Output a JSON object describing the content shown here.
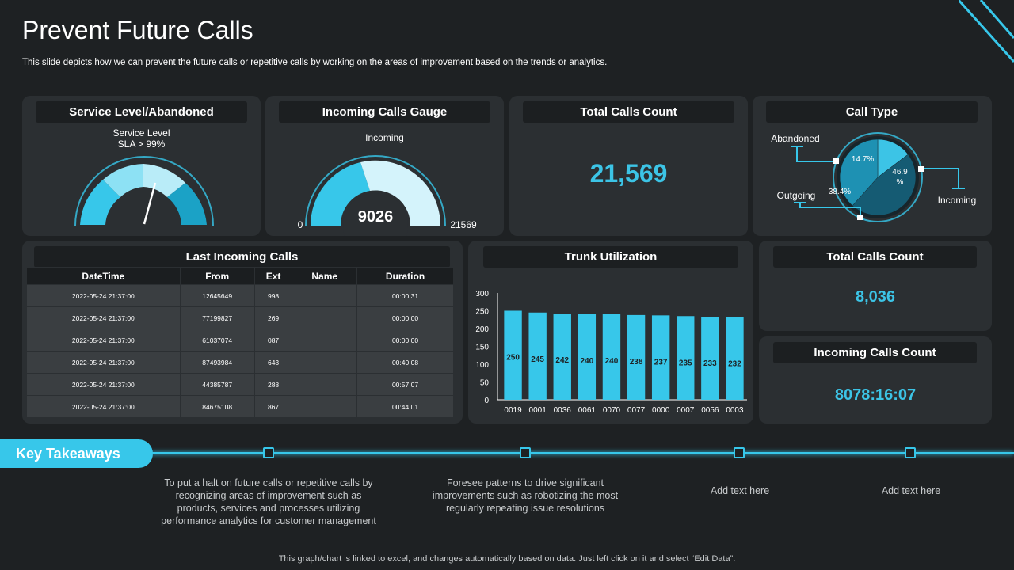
{
  "slide": {
    "title": "Prevent Future Calls",
    "subtitle": "This slide depicts how we can prevent the future calls or repetitive calls by working on the areas of improvement based on the trends or analytics."
  },
  "service_level": {
    "header": "Service Level/Abandoned",
    "label_line1": "Service Level",
    "label_line2": "SLA > 99%"
  },
  "gauge": {
    "header": "Incoming Calls Gauge",
    "label": "Incoming",
    "value": "9026",
    "min": "0",
    "max": "21569"
  },
  "total_calls_1": {
    "header": "Total Calls Count",
    "value": "21,569"
  },
  "call_type": {
    "header": "Call Type",
    "abandoned_label": "Abandoned",
    "outgoing_label": "Outgoing",
    "incoming_label": "Incoming",
    "abandoned_pct": "14.7%",
    "outgoing_pct": "38.4%",
    "incoming_pct_line1": "46.9",
    "incoming_pct_line2": "%"
  },
  "last_calls": {
    "header": "Last Incoming Calls",
    "columns": [
      "DateTime",
      "From",
      "Ext",
      "Name",
      "Duration"
    ],
    "rows": [
      [
        "2022-05-24 21:37:00",
        "12645649",
        "998",
        "",
        "00:00:31"
      ],
      [
        "2022-05-24 21:37:00",
        "77199827",
        "269",
        "",
        "00:00:00"
      ],
      [
        "2022-05-24 21:37:00",
        "61037074",
        "087",
        "",
        "00:00:00"
      ],
      [
        "2022-05-24 21:37:00",
        "87493984",
        "643",
        "",
        "00:40:08"
      ],
      [
        "2022-05-24 21:37:00",
        "44385787",
        "288",
        "",
        "00:57:07"
      ],
      [
        "2022-05-24 21:37:00",
        "84675108",
        "867",
        "",
        "00:44:01"
      ]
    ]
  },
  "trunk": {
    "header": "Trunk Utilization"
  },
  "total_calls_2": {
    "header": "Total Calls Count",
    "value": "8,036"
  },
  "incoming_count": {
    "header": "Incoming Calls Count",
    "value": "8078:16:07"
  },
  "takeaways": {
    "label": "Key Takeaways",
    "items": [
      "To put a halt on future calls or repetitive calls by recognizing areas of improvement such as products, services and processes utilizing performance analytics for customer management",
      "Foresee patterns to drive significant improvements such as robotizing the most regularly repeating issue resolutions",
      "Add text here",
      "Add text here"
    ]
  },
  "footer": "This graph/chart is linked to excel, and changes automatically based on data. Just left click on it and select “Edit Data”.",
  "colors": {
    "accent": "#37c7ea",
    "panel": "#2b2f32",
    "background": "#1e2123"
  },
  "chart_data": [
    {
      "type": "bar",
      "title": "Trunk Utilization",
      "categories": [
        "0019",
        "0001",
        "0036",
        "0061",
        "0070",
        "0077",
        "0000",
        "0007",
        "0056",
        "0003"
      ],
      "values": [
        250,
        245,
        242,
        240,
        240,
        238,
        237,
        235,
        233,
        232
      ],
      "ylim": [
        0,
        300
      ],
      "yticks": [
        0,
        50,
        100,
        150,
        200,
        250,
        300
      ],
      "grid": false,
      "data_labels": true,
      "color": "#37c7ea"
    },
    {
      "type": "pie",
      "title": "Call Type",
      "labels": [
        "Abandoned",
        "Incoming",
        "Outgoing"
      ],
      "values": [
        14.7,
        46.9,
        38.4
      ],
      "colors": [
        "#3cc4e6",
        "#155b73",
        "#1e91b3"
      ]
    }
  ]
}
